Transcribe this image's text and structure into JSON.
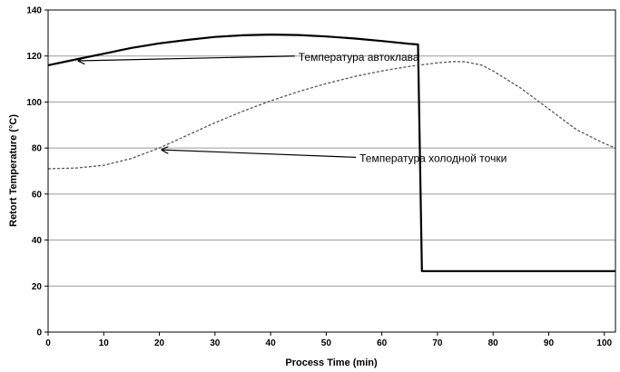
{
  "chart_data": {
    "type": "line",
    "title": "",
    "xlabel": "Process Time (min)",
    "ylabel": "Retort Temperature (°C)",
    "xlim": [
      0,
      102
    ],
    "ylim": [
      0,
      140
    ],
    "xticks": [
      0,
      10,
      20,
      30,
      40,
      50,
      60,
      70,
      80,
      90,
      100
    ],
    "yticks": [
      0,
      20,
      40,
      60,
      80,
      100,
      120,
      140
    ],
    "grid": "horizontal",
    "legend": "none",
    "series": [
      {
        "style": "solid",
        "color": "#000000",
        "x": [
          0,
          5,
          10,
          15,
          20,
          25,
          30,
          35,
          40,
          45,
          50,
          55,
          60,
          65,
          66.5,
          67.2,
          70,
          80,
          90,
          100,
          102
        ],
        "y": [
          116,
          118.5,
          121,
          123.5,
          125.5,
          127,
          128.3,
          129,
          129.3,
          129.1,
          128.5,
          127.6,
          126.5,
          125.3,
          125,
          26.5,
          26.5,
          26.5,
          26.5,
          26.5,
          26.5
        ]
      },
      {
        "style": "dashed",
        "color": "#555555",
        "x": [
          0,
          5,
          10,
          15,
          20,
          25,
          30,
          35,
          40,
          45,
          50,
          55,
          60,
          65,
          70,
          73,
          75,
          78,
          80,
          85,
          90,
          95,
          100,
          102
        ],
        "y": [
          71,
          71.3,
          72.5,
          75.5,
          80,
          85.5,
          91,
          96,
          100.5,
          104.5,
          108,
          111,
          113.5,
          115.5,
          117,
          117.6,
          117.5,
          116,
          113.5,
          106,
          97,
          88,
          82,
          80
        ]
      }
    ],
    "annotations": [
      {
        "text": "Температура автоклава",
        "x": 45,
        "y": 118,
        "target_x": 5,
        "target_y": 118.7
      },
      {
        "text": "Температура холодной точки",
        "x": 56,
        "y": 74,
        "target_x": 20,
        "target_y": 80
      }
    ]
  }
}
